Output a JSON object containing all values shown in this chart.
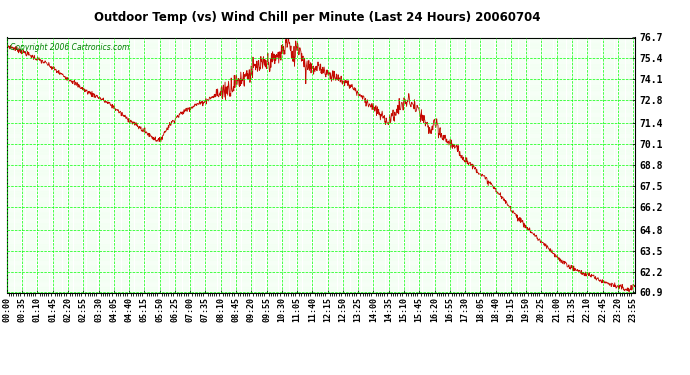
{
  "title": "Outdoor Temp (vs) Wind Chill per Minute (Last 24 Hours) 20060704",
  "copyright": "Copyright 2006 Cartronics.com",
  "background_color": "#ffffff",
  "plot_bg_color": "#ffffff",
  "grid_color": "#00ff00",
  "line_color": "#cc0000",
  "yticks": [
    60.9,
    62.2,
    63.5,
    64.8,
    66.2,
    67.5,
    68.8,
    70.1,
    71.4,
    72.8,
    74.1,
    75.4,
    76.7
  ],
  "ymin": 60.9,
  "ymax": 76.7,
  "xtick_step": 35,
  "xtick_labels": [
    "00:00",
    "00:35",
    "01:10",
    "01:45",
    "02:20",
    "02:55",
    "03:30",
    "04:05",
    "04:40",
    "05:15",
    "05:50",
    "06:25",
    "07:00",
    "07:35",
    "08:10",
    "08:45",
    "09:20",
    "09:55",
    "10:30",
    "11:05",
    "11:40",
    "12:15",
    "12:50",
    "13:25",
    "14:00",
    "14:35",
    "15:10",
    "15:45",
    "16:20",
    "16:55",
    "17:30",
    "18:05",
    "18:40",
    "19:15",
    "19:50",
    "20:25",
    "21:00",
    "21:35",
    "22:10",
    "22:45",
    "23:20",
    "23:55"
  ],
  "waypoints": [
    [
      0,
      76.2
    ],
    [
      30,
      75.9
    ],
    [
      60,
      75.5
    ],
    [
      90,
      75.1
    ],
    [
      120,
      74.5
    ],
    [
      150,
      74.0
    ],
    [
      180,
      73.4
    ],
    [
      210,
      73.0
    ],
    [
      240,
      72.5
    ],
    [
      270,
      71.8
    ],
    [
      300,
      71.2
    ],
    [
      320,
      70.8
    ],
    [
      340,
      70.4
    ],
    [
      350,
      70.3
    ],
    [
      370,
      71.2
    ],
    [
      390,
      71.8
    ],
    [
      410,
      72.2
    ],
    [
      430,
      72.5
    ],
    [
      450,
      72.7
    ],
    [
      470,
      73.0
    ],
    [
      490,
      73.3
    ],
    [
      510,
      73.6
    ],
    [
      530,
      74.0
    ],
    [
      550,
      74.4
    ],
    [
      570,
      74.8
    ],
    [
      590,
      75.0
    ],
    [
      610,
      75.3
    ],
    [
      625,
      75.6
    ],
    [
      635,
      76.0
    ],
    [
      645,
      76.6
    ],
    [
      655,
      75.2
    ],
    [
      665,
      76.3
    ],
    [
      675,
      75.8
    ],
    [
      685,
      74.8
    ],
    [
      695,
      75.1
    ],
    [
      705,
      74.6
    ],
    [
      715,
      74.9
    ],
    [
      725,
      74.7
    ],
    [
      740,
      74.4
    ],
    [
      755,
      74.2
    ],
    [
      770,
      74.0
    ],
    [
      785,
      73.8
    ],
    [
      800,
      73.4
    ],
    [
      815,
      73.0
    ],
    [
      830,
      72.6
    ],
    [
      845,
      72.2
    ],
    [
      860,
      71.8
    ],
    [
      875,
      71.5
    ],
    [
      890,
      72.0
    ],
    [
      905,
      72.5
    ],
    [
      920,
      72.8
    ],
    [
      935,
      72.4
    ],
    [
      950,
      71.8
    ],
    [
      960,
      71.3
    ],
    [
      970,
      70.9
    ],
    [
      980,
      71.4
    ],
    [
      990,
      70.8
    ],
    [
      1000,
      70.5
    ],
    [
      1010,
      70.3
    ],
    [
      1020,
      70.1
    ],
    [
      1035,
      69.6
    ],
    [
      1050,
      69.2
    ],
    [
      1065,
      68.8
    ],
    [
      1080,
      68.4
    ],
    [
      1095,
      68.0
    ],
    [
      1110,
      67.6
    ],
    [
      1125,
      67.1
    ],
    [
      1140,
      66.6
    ],
    [
      1155,
      66.1
    ],
    [
      1170,
      65.6
    ],
    [
      1185,
      65.1
    ],
    [
      1200,
      64.7
    ],
    [
      1215,
      64.3
    ],
    [
      1230,
      63.9
    ],
    [
      1245,
      63.5
    ],
    [
      1260,
      63.1
    ],
    [
      1275,
      62.8
    ],
    [
      1290,
      62.5
    ],
    [
      1305,
      62.3
    ],
    [
      1320,
      62.1
    ],
    [
      1335,
      62.0
    ],
    [
      1350,
      61.8
    ],
    [
      1365,
      61.6
    ],
    [
      1380,
      61.5
    ],
    [
      1395,
      61.3
    ],
    [
      1410,
      61.2
    ],
    [
      1420,
      61.0
    ],
    [
      1430,
      61.1
    ],
    [
      1439,
      61.4
    ]
  ]
}
